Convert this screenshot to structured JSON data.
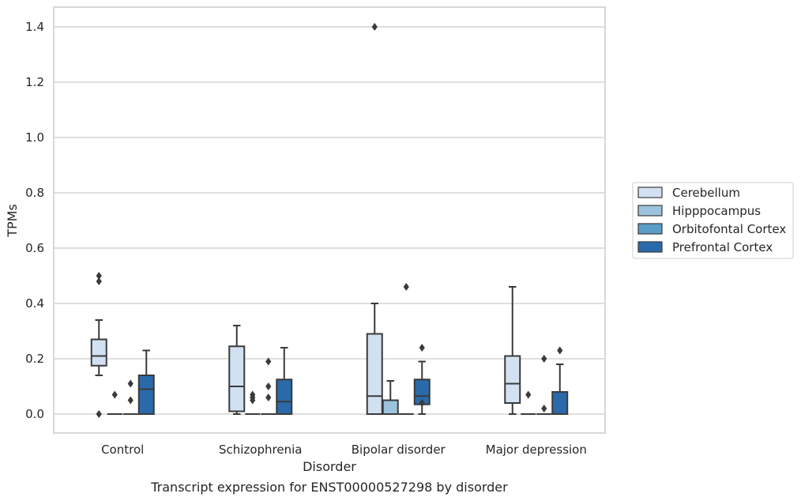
{
  "chart_data": {
    "type": "box",
    "xlabel": "Disorder",
    "ylabel": "TPMs",
    "caption": "Transcript expression for ENST00000527298 by disorder",
    "categories": [
      "Control",
      "Schizophrenia",
      "Bipolar disorder",
      "Major depression"
    ],
    "ylim": [
      -0.07,
      1.47
    ],
    "yticks": [
      0.0,
      0.2,
      0.4,
      0.6,
      0.8,
      1.0,
      1.2,
      1.4
    ],
    "ytick_labels": [
      "0.0",
      "0.2",
      "0.4",
      "0.6",
      "0.8",
      "1.0",
      "1.2",
      "1.4"
    ],
    "grid": "horizontal",
    "legend_position": "right-center",
    "series": [
      {
        "name": "Cerebellum",
        "color": "#d1e1f2",
        "boxes": [
          {
            "q1": 0.175,
            "median": 0.21,
            "q3": 0.27,
            "whislo": 0.14,
            "whishi": 0.34,
            "fliers": [
              0.5,
              0.48,
              0.0
            ]
          },
          {
            "q1": 0.01,
            "median": 0.1,
            "q3": 0.245,
            "whislo": 0.0,
            "whishi": 0.32,
            "fliers": []
          },
          {
            "q1": 0.0,
            "median": 0.065,
            "q3": 0.29,
            "whislo": 0.0,
            "whishi": 0.4,
            "fliers": [
              1.4
            ]
          },
          {
            "q1": 0.04,
            "median": 0.11,
            "q3": 0.21,
            "whislo": 0.0,
            "whishi": 0.46,
            "fliers": []
          }
        ]
      },
      {
        "name": "Hipppocampus",
        "color": "#9cc3dd",
        "boxes": [
          {
            "q1": 0.0,
            "median": 0.0,
            "q3": 0.0,
            "whislo": 0.0,
            "whishi": 0.0,
            "fliers": [
              0.07
            ]
          },
          {
            "q1": 0.0,
            "median": 0.0,
            "q3": 0.0,
            "whislo": 0.0,
            "whishi": 0.0,
            "fliers": [
              0.07,
              0.06,
              0.05
            ]
          },
          {
            "q1": 0.0,
            "median": 0.0,
            "q3": 0.05,
            "whislo": 0.0,
            "whishi": 0.12,
            "fliers": []
          },
          {
            "q1": 0.0,
            "median": 0.0,
            "q3": 0.0,
            "whislo": 0.0,
            "whishi": 0.0,
            "fliers": [
              0.07
            ]
          }
        ]
      },
      {
        "name": "Orbitofontal Cortex",
        "color": "#5a9dc8",
        "boxes": [
          {
            "q1": 0.0,
            "median": 0.0,
            "q3": 0.0,
            "whislo": 0.0,
            "whishi": 0.0,
            "fliers": [
              0.11,
              0.05
            ]
          },
          {
            "q1": 0.0,
            "median": 0.0,
            "q3": 0.0,
            "whislo": 0.0,
            "whishi": 0.0,
            "fliers": [
              0.19,
              0.1,
              0.06
            ]
          },
          {
            "q1": 0.0,
            "median": 0.0,
            "q3": 0.0,
            "whislo": 0.0,
            "whishi": 0.0,
            "fliers": [
              0.46
            ]
          },
          {
            "q1": 0.0,
            "median": 0.0,
            "q3": 0.0,
            "whislo": 0.0,
            "whishi": 0.0,
            "fliers": [
              0.2,
              0.02
            ]
          }
        ]
      },
      {
        "name": "Prefrontal Cortex",
        "color": "#2a6aab",
        "boxes": [
          {
            "q1": 0.0,
            "median": 0.09,
            "q3": 0.14,
            "whislo": 0.0,
            "whishi": 0.23,
            "fliers": []
          },
          {
            "q1": 0.0,
            "median": 0.045,
            "q3": 0.125,
            "whislo": 0.0,
            "whishi": 0.24,
            "fliers": []
          },
          {
            "q1": 0.035,
            "median": 0.065,
            "q3": 0.125,
            "whislo": 0.0,
            "whishi": 0.19,
            "fliers": [
              0.24,
              0.04
            ]
          },
          {
            "q1": 0.0,
            "median": 0.0,
            "q3": 0.08,
            "whislo": 0.0,
            "whishi": 0.18,
            "fliers": [
              0.23
            ]
          }
        ]
      }
    ]
  }
}
